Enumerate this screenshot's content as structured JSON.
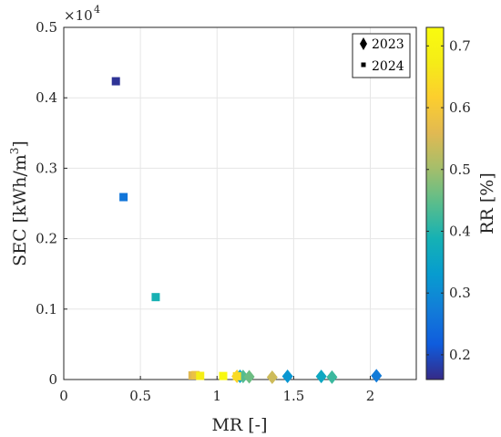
{
  "chart_data": {
    "type": "scatter",
    "xlabel": "MR [-]",
    "ylabel": "SEC [kWh/m",
    "ylabel_sup": "3",
    "ylabel_end": "]",
    "y_multiplier": "×10",
    "y_multiplier_exp": "4",
    "xlim": [
      0,
      2.3
    ],
    "ylim": [
      0,
      0.5
    ],
    "xticks": [
      "0",
      "0.5",
      "1",
      "1.5",
      "2"
    ],
    "yticks": [
      "0",
      "0.1",
      "0.2",
      "0.3",
      "0.4",
      "0.5"
    ],
    "grid": true,
    "legend_position": "top-right",
    "colorbar": {
      "label": "RR [%]",
      "range": [
        0.16,
        0.73
      ],
      "ticks": [
        "0.2",
        "0.3",
        "0.4",
        "0.5",
        "0.6",
        "0.7"
      ],
      "colormap": "parula"
    },
    "series": [
      {
        "name": "2023",
        "marker": "diamond",
        "points": [
          {
            "x": 1.13,
            "y": 0.0046,
            "rr": 0.62
          },
          {
            "x": 1.15,
            "y": 0.0045,
            "rr": 0.35
          },
          {
            "x": 1.17,
            "y": 0.0044,
            "rr": 0.44
          },
          {
            "x": 1.21,
            "y": 0.0039,
            "rr": 0.46
          },
          {
            "x": 1.36,
            "y": 0.0032,
            "rr": 0.54
          },
          {
            "x": 1.46,
            "y": 0.0045,
            "rr": 0.32
          },
          {
            "x": 1.68,
            "y": 0.0044,
            "rr": 0.36
          },
          {
            "x": 1.75,
            "y": 0.0034,
            "rr": 0.42
          },
          {
            "x": 2.04,
            "y": 0.0053,
            "rr": 0.27
          }
        ]
      },
      {
        "name": "2024",
        "marker": "square",
        "points": [
          {
            "x": 0.34,
            "y": 0.4235,
            "rr": 0.17
          },
          {
            "x": 0.39,
            "y": 0.259,
            "rr": 0.26
          },
          {
            "x": 0.6,
            "y": 0.117,
            "rr": 0.39
          },
          {
            "x": 0.84,
            "y": 0.0058,
            "rr": 0.56
          },
          {
            "x": 0.86,
            "y": 0.0063,
            "rr": 0.58
          },
          {
            "x": 0.89,
            "y": 0.0052,
            "rr": 0.68
          },
          {
            "x": 1.04,
            "y": 0.005,
            "rr": 0.72
          },
          {
            "x": 1.13,
            "y": 0.0047,
            "rr": 0.64
          }
        ]
      }
    ]
  }
}
